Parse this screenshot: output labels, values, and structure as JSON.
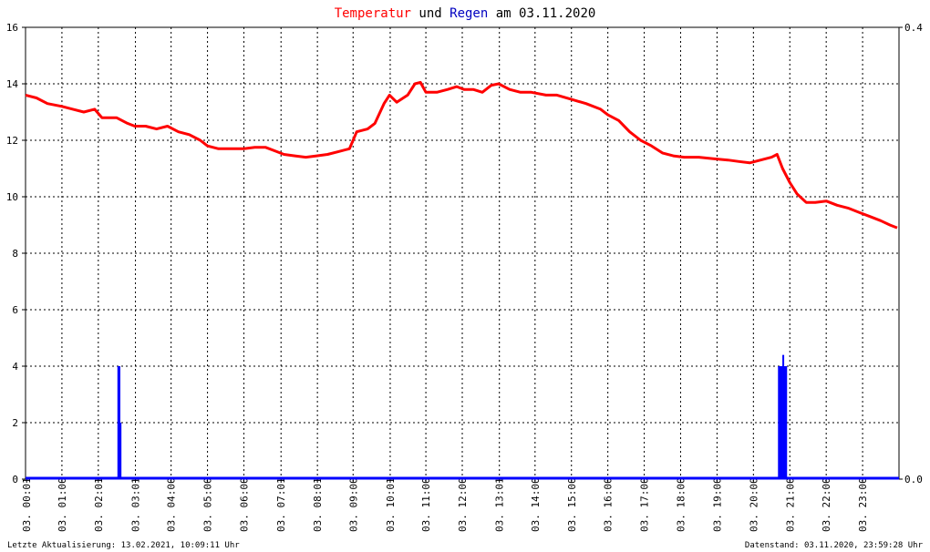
{
  "title": {
    "part1": "Temperatur",
    "part2": " und ",
    "part3": "Regen",
    "part4": " am 03.11.2020"
  },
  "footer": {
    "left": "Letzte Aktualisierung: 13.02.2021, 10:09:11 Uhr",
    "right": "Datenstand: 03.11.2020, 23:59:28 Uhr"
  },
  "colors": {
    "temperature": "#ff0000",
    "rain": "#0000ff",
    "grid": "#000000",
    "background": "#ffffff"
  },
  "chart_data": {
    "type": "line",
    "title": "Temperatur und Regen am 03.11.2020",
    "grid": true,
    "x_range": [
      0,
      24
    ],
    "ylim_left": [
      0,
      16
    ],
    "ylim_right": [
      0,
      0.4
    ],
    "y_ticks_left": [
      "0",
      "2",
      "4",
      "6",
      "8",
      "10",
      "12",
      "14",
      "16"
    ],
    "y_ticks_right": [
      "0.0",
      "0.4"
    ],
    "x_ticks": [
      {
        "t": 0.03,
        "label": "03. 00:01"
      },
      {
        "t": 1.0,
        "label": "03. 01:00"
      },
      {
        "t": 2.0,
        "label": "03. 02:01"
      },
      {
        "t": 3.02,
        "label": "03. 03:01"
      },
      {
        "t": 4.0,
        "label": "03. 04:00"
      },
      {
        "t": 5.0,
        "label": "03. 05:00"
      },
      {
        "t": 6.0,
        "label": "03. 06:00"
      },
      {
        "t": 7.02,
        "label": "03. 07:01"
      },
      {
        "t": 8.02,
        "label": "03. 08:01"
      },
      {
        "t": 9.0,
        "label": "03. 09:00"
      },
      {
        "t": 10.02,
        "label": "03. 10:01"
      },
      {
        "t": 11.0,
        "label": "03. 11:00"
      },
      {
        "t": 12.0,
        "label": "03. 12:00"
      },
      {
        "t": 13.02,
        "label": "03. 13:01"
      },
      {
        "t": 14.0,
        "label": "03. 14:00"
      },
      {
        "t": 15.0,
        "label": "03. 15:00"
      },
      {
        "t": 16.0,
        "label": "03. 16:00"
      },
      {
        "t": 17.0,
        "label": "03. 17:00"
      },
      {
        "t": 18.0,
        "label": "03. 18:00"
      },
      {
        "t": 19.0,
        "label": "03. 19:00"
      },
      {
        "t": 20.0,
        "label": "03. 20:00"
      },
      {
        "t": 21.0,
        "label": "03. 21:00"
      },
      {
        "t": 22.0,
        "label": "03. 22:00"
      },
      {
        "t": 23.0,
        "label": "03. 23:00"
      }
    ],
    "series": [
      {
        "name": "Temperatur",
        "axis": "left",
        "points": [
          [
            0.0,
            13.6
          ],
          [
            0.3,
            13.5
          ],
          [
            0.6,
            13.3
          ],
          [
            1.0,
            13.2
          ],
          [
            1.3,
            13.1
          ],
          [
            1.6,
            13.0
          ],
          [
            1.9,
            13.1
          ],
          [
            2.1,
            12.8
          ],
          [
            2.5,
            12.8
          ],
          [
            2.8,
            12.6
          ],
          [
            3.0,
            12.5
          ],
          [
            3.3,
            12.5
          ],
          [
            3.6,
            12.4
          ],
          [
            3.9,
            12.5
          ],
          [
            4.2,
            12.3
          ],
          [
            4.5,
            12.2
          ],
          [
            4.8,
            12.0
          ],
          [
            5.0,
            11.8
          ],
          [
            5.3,
            11.7
          ],
          [
            5.6,
            11.7
          ],
          [
            6.0,
            11.7
          ],
          [
            6.3,
            11.75
          ],
          [
            6.6,
            11.75
          ],
          [
            6.9,
            11.6
          ],
          [
            7.1,
            11.5
          ],
          [
            7.4,
            11.45
          ],
          [
            7.7,
            11.4
          ],
          [
            8.0,
            11.45
          ],
          [
            8.3,
            11.5
          ],
          [
            8.6,
            11.6
          ],
          [
            8.9,
            11.7
          ],
          [
            9.1,
            12.3
          ],
          [
            9.4,
            12.4
          ],
          [
            9.6,
            12.6
          ],
          [
            9.85,
            13.3
          ],
          [
            10.0,
            13.6
          ],
          [
            10.2,
            13.35
          ],
          [
            10.5,
            13.6
          ],
          [
            10.7,
            14.0
          ],
          [
            10.85,
            14.05
          ],
          [
            11.0,
            13.7
          ],
          [
            11.3,
            13.7
          ],
          [
            11.6,
            13.8
          ],
          [
            11.85,
            13.9
          ],
          [
            12.05,
            13.8
          ],
          [
            12.3,
            13.8
          ],
          [
            12.55,
            13.7
          ],
          [
            12.8,
            13.95
          ],
          [
            13.0,
            14.0
          ],
          [
            13.3,
            13.8
          ],
          [
            13.6,
            13.7
          ],
          [
            13.9,
            13.7
          ],
          [
            14.3,
            13.6
          ],
          [
            14.6,
            13.6
          ],
          [
            15.0,
            13.45
          ],
          [
            15.4,
            13.3
          ],
          [
            15.8,
            13.1
          ],
          [
            16.0,
            12.9
          ],
          [
            16.3,
            12.7
          ],
          [
            16.6,
            12.3
          ],
          [
            16.9,
            12.0
          ],
          [
            17.2,
            11.8
          ],
          [
            17.5,
            11.55
          ],
          [
            17.8,
            11.45
          ],
          [
            18.1,
            11.4
          ],
          [
            18.5,
            11.4
          ],
          [
            18.9,
            11.35
          ],
          [
            19.3,
            11.3
          ],
          [
            19.6,
            11.25
          ],
          [
            19.9,
            11.2
          ],
          [
            20.2,
            11.3
          ],
          [
            20.5,
            11.4
          ],
          [
            20.65,
            11.5
          ],
          [
            20.8,
            11.0
          ],
          [
            21.0,
            10.5
          ],
          [
            21.2,
            10.1
          ],
          [
            21.45,
            9.8
          ],
          [
            21.7,
            9.8
          ],
          [
            22.0,
            9.85
          ],
          [
            22.3,
            9.7
          ],
          [
            22.6,
            9.6
          ],
          [
            22.9,
            9.45
          ],
          [
            23.2,
            9.3
          ],
          [
            23.5,
            9.15
          ],
          [
            23.75,
            9.0
          ],
          [
            23.95,
            8.9
          ]
        ]
      },
      {
        "name": "Regen",
        "axis": "right",
        "bars": [
          [
            2.55,
            0.1
          ],
          [
            2.58,
            0.1
          ],
          [
            2.61,
            0.05
          ],
          [
            20.7,
            0.1
          ],
          [
            20.74,
            0.1
          ],
          [
            20.78,
            0.1
          ],
          [
            20.82,
            0.11
          ],
          [
            20.86,
            0.1
          ],
          [
            20.9,
            0.1
          ]
        ]
      }
    ]
  }
}
